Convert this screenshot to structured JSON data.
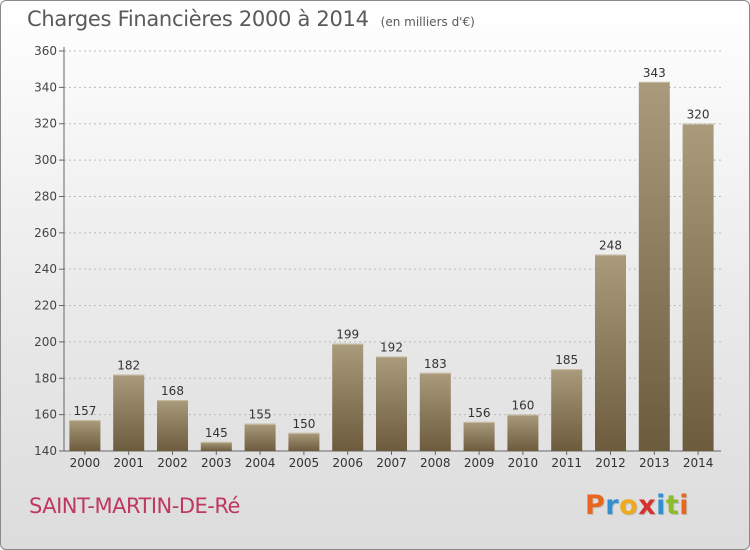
{
  "header": {
    "title": "Charges Financières 2000 à 2014",
    "subtitle": "(en milliers d'€)"
  },
  "footer": {
    "commune": "SAINT-MARTIN-DE-Ré",
    "logo": [
      "P",
      "r",
      "o",
      "x",
      "i",
      "t",
      "i"
    ],
    "logo_colors": [
      "#e8671e",
      "#2f8fd0",
      "#f0a81c",
      "#d6312d",
      "#2f8fd0",
      "#8dbb2e",
      "#e8671e"
    ]
  },
  "colors": {
    "bar_top": "#a99b7c",
    "bar_bottom": "#6d5b3e",
    "axis": "#666666",
    "grid": "#bbbbbb"
  },
  "chart_data": {
    "type": "bar",
    "categories": [
      "2000",
      "2001",
      "2002",
      "2003",
      "2004",
      "2005",
      "2006",
      "2007",
      "2008",
      "2009",
      "2010",
      "2011",
      "2012",
      "2013",
      "2014"
    ],
    "values": [
      157,
      182,
      168,
      145,
      155,
      150,
      199,
      192,
      183,
      156,
      160,
      185,
      248,
      343,
      320
    ],
    "ylim": [
      140,
      360
    ],
    "yticks": [
      140,
      160,
      180,
      200,
      220,
      240,
      260,
      280,
      300,
      320,
      340,
      360
    ],
    "grid": true,
    "data_labels": true
  }
}
